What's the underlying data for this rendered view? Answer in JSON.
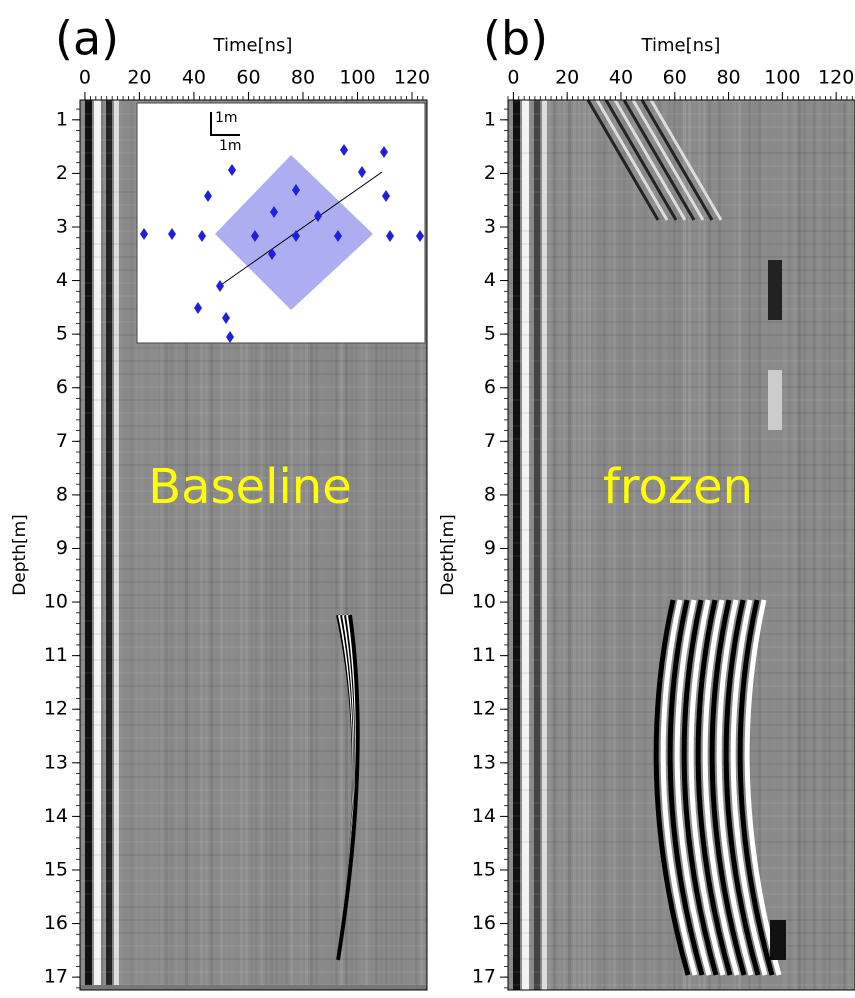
{
  "chart_data": [
    {
      "type": "radargram",
      "panel_label": "(a)",
      "x_label": "Time[ns]",
      "y_label": "Depth[m]",
      "annotation": "Baseline",
      "xlim": [
        -1.8,
        125.5
      ],
      "xticks": [
        0,
        20,
        40,
        60,
        80,
        100,
        120
      ],
      "ylim": [
        0.63,
        17.24
      ],
      "yticks": [
        1,
        2,
        3,
        4,
        5,
        6,
        7,
        8,
        9,
        10,
        11,
        12,
        13,
        14,
        15,
        16,
        17
      ],
      "inset": {
        "scale_y": "1m",
        "scale_x": "1m"
      }
    },
    {
      "type": "radargram",
      "panel_label": "(b)",
      "x_label": "Time[ns]",
      "y_label": "Depth[m]",
      "annotation": "frozen",
      "xlim": [
        -2,
        127
      ],
      "xticks": [
        0,
        20,
        40,
        60,
        80,
        100,
        120
      ],
      "ylim": [
        0.63,
        17.24
      ],
      "yticks": [
        1,
        2,
        3,
        4,
        5,
        6,
        7,
        8,
        9,
        10,
        11,
        12,
        13,
        14,
        15,
        16,
        17
      ]
    }
  ]
}
